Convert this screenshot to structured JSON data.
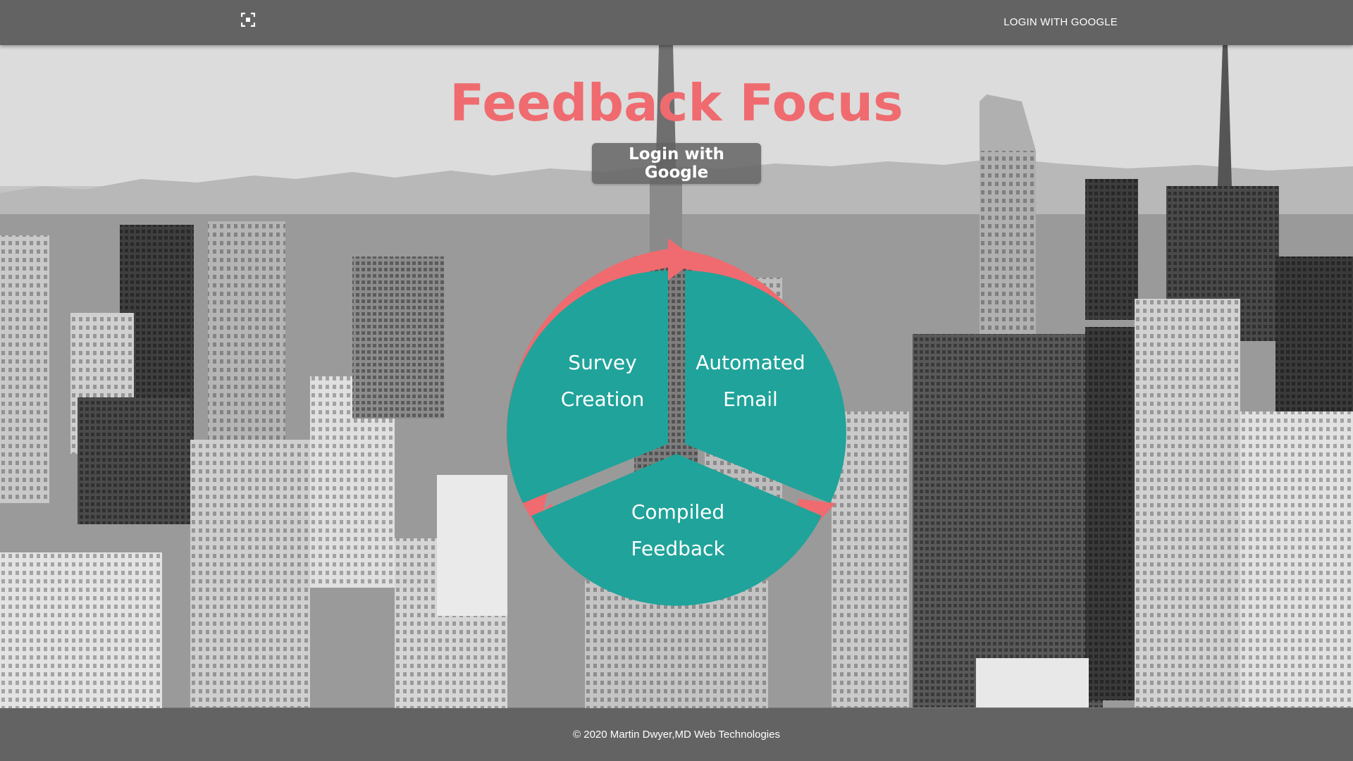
{
  "navbar": {
    "logo_icon": "fullscreen-corners-icon",
    "login_label": "LOGIN WITH GOOGLE"
  },
  "hero": {
    "title": "Feedback Focus",
    "button_label": "Login with Google",
    "background": "city-skyline-photo-grayscale"
  },
  "cycle": {
    "segments": [
      {
        "line1": "Survey",
        "line2": "Creation"
      },
      {
        "line1": "Automated",
        "line2": "Email"
      },
      {
        "line1": "Compiled",
        "line2": "Feedback"
      }
    ]
  },
  "colors": {
    "accent": "#ef6b6f",
    "teal": "#20a39a",
    "bar": "#636363"
  },
  "footer": {
    "text": "© 2020 Martin Dwyer,MD Web Technologies"
  }
}
